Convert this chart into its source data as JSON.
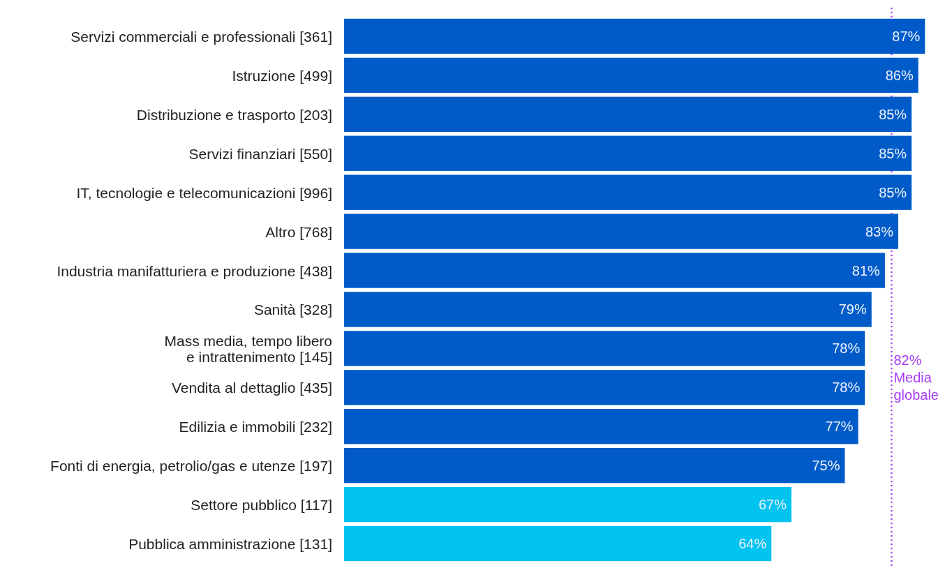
{
  "chart_data": {
    "type": "bar",
    "orientation": "horizontal",
    "categories": [
      "Servizi commerciali e professionali [361]",
      "Istruzione [499]",
      "Distribuzione e trasporto [203]",
      "Servizi finanziari [550]",
      "IT, tecnologie e telecomunicazioni [996]",
      "Altro [768]",
      "Industria manifatturiera e produzione [438]",
      "Sanità [328]",
      "Mass media, tempo libero e intrattenimento [145]",
      "Vendita al dettaglio [435]",
      "Edilizia e immobili [232]",
      "Fonti di energia, petrolio/gas e utenze [197]",
      "Settore pubblico [117]",
      "Pubblica amministrazione [131]"
    ],
    "values": [
      87,
      86,
      85,
      85,
      85,
      83,
      81,
      79,
      78,
      78,
      77,
      75,
      67,
      64
    ],
    "colors": [
      "#005bc8",
      "#005bc8",
      "#005bc8",
      "#005bc8",
      "#005bc8",
      "#005bc8",
      "#005bc8",
      "#005bc8",
      "#005bc8",
      "#005bc8",
      "#005bc8",
      "#005bc8",
      "#00c3f0",
      "#00c3f0"
    ],
    "value_labels": [
      "87%",
      "86%",
      "85%",
      "85%",
      "85%",
      "83%",
      "81%",
      "79%",
      "78%",
      "78%",
      "77%",
      "75%",
      "67%",
      "64%"
    ],
    "xlim": [
      0,
      90
    ],
    "tick_labels": "y",
    "ref_lines": [
      {
        "axis": "x",
        "value": 82,
        "label": "82% Media globale",
        "color": "#a63cf5",
        "line_style": "dotted"
      }
    ]
  }
}
